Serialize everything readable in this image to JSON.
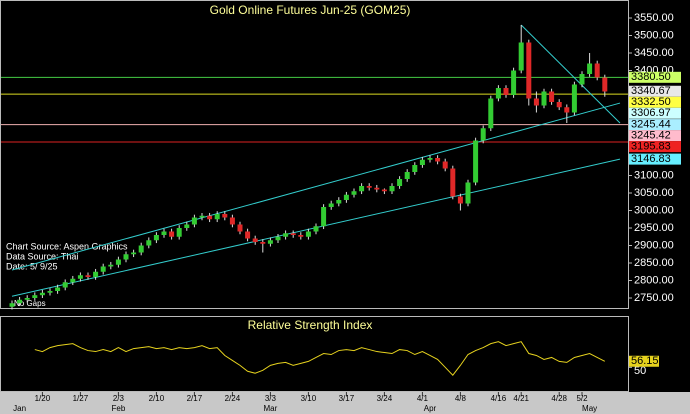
{
  "chart_data": [
    {
      "type": "candlestick",
      "title": "Gold Online Futures Jun-25 (GOM25)",
      "annotations": [
        "Chart Source: Aspen Graphics",
        "Data Source: Thai",
        "Date:    5/ 9/25",
        "No Gaps"
      ],
      "categories": [
        null,
        null,
        null,
        null,
        "1/20",
        null,
        null,
        null,
        null,
        "1/27",
        null,
        null,
        null,
        null,
        "2/3",
        null,
        null,
        null,
        null,
        "2/10",
        null,
        null,
        null,
        null,
        "2/17",
        null,
        null,
        null,
        null,
        "2/24",
        null,
        null,
        null,
        null,
        "3/3",
        null,
        null,
        null,
        null,
        "3/10",
        null,
        null,
        null,
        null,
        "3/17",
        null,
        null,
        null,
        null,
        "3/24",
        null,
        null,
        null,
        null,
        "4/1",
        null,
        null,
        null,
        null,
        "4/8",
        null,
        null,
        null,
        null,
        "4/16",
        null,
        null,
        "4/21",
        null,
        null,
        null,
        null,
        "4/28",
        null,
        null,
        "5/2",
        null,
        null,
        null
      ],
      "months": [
        null,
        "Jan",
        null,
        null,
        null,
        null,
        null,
        null,
        null,
        null,
        null,
        null,
        null,
        null,
        "Feb",
        null,
        null,
        null,
        null,
        null,
        null,
        null,
        null,
        null,
        null,
        null,
        null,
        null,
        null,
        null,
        null,
        null,
        null,
        null,
        "Mar",
        null,
        null,
        null,
        null,
        null,
        null,
        null,
        null,
        null,
        null,
        null,
        null,
        null,
        null,
        null,
        null,
        null,
        null,
        null,
        null,
        "Apr",
        null,
        null,
        null,
        null,
        null,
        null,
        null,
        null,
        null,
        null,
        null,
        null,
        null,
        null,
        null,
        null,
        null,
        null,
        null,
        null,
        "May",
        null,
        null
      ],
      "open": [
        2725,
        2735,
        2745,
        2750,
        2758,
        2765,
        2770,
        2780,
        2795,
        2805,
        2815,
        2810,
        2825,
        2840,
        2845,
        2860,
        2875,
        2880,
        2900,
        2915,
        2930,
        2940,
        2925,
        2950,
        2960,
        2980,
        2985,
        2975,
        2990,
        2980,
        2960,
        2940,
        2920,
        2910,
        2905,
        2915,
        2925,
        2935,
        2930,
        2925,
        2940,
        2955,
        3010,
        3020,
        3030,
        3045,
        3055,
        3070,
        3065,
        3060,
        3055,
        3070,
        3090,
        3110,
        3130,
        3145,
        3150,
        3140,
        3120,
        3040,
        3020,
        3080,
        3200,
        3235,
        3320,
        3350,
        3330,
        3400,
        3480,
        3320,
        3300,
        3340,
        3310,
        3295,
        3280,
        3360,
        3390,
        3420,
        3380
      ],
      "high": [
        2743,
        2753,
        2758,
        2766,
        2773,
        2778,
        2788,
        2803,
        2813,
        2823,
        2823,
        2833,
        2848,
        2853,
        2868,
        2883,
        2888,
        2908,
        2923,
        2938,
        2948,
        2948,
        2958,
        2968,
        2988,
        2993,
        2993,
        2998,
        2998,
        2988,
        2968,
        2948,
        2928,
        2918,
        2923,
        2933,
        2943,
        2943,
        2938,
        2948,
        2963,
        3018,
        3028,
        3038,
        3053,
        3063,
        3078,
        3078,
        3073,
        3063,
        3078,
        3098,
        3118,
        3138,
        3153,
        3158,
        3158,
        3148,
        3128,
        3048,
        3088,
        3208,
        3243,
        3328,
        3358,
        3358,
        3408,
        3530,
        3488,
        3340,
        3348,
        3348,
        3318,
        3303,
        3368,
        3398,
        3450,
        3428,
        3388
      ],
      "low": [
        2717,
        2727,
        2737,
        2742,
        2750,
        2757,
        2762,
        2772,
        2787,
        2797,
        2802,
        2802,
        2817,
        2832,
        2837,
        2852,
        2867,
        2872,
        2892,
        2907,
        2922,
        2917,
        2917,
        2942,
        2952,
        2972,
        2967,
        2967,
        2972,
        2952,
        2932,
        2912,
        2902,
        2880,
        2897,
        2907,
        2917,
        2922,
        2917,
        2917,
        2932,
        2947,
        3002,
        3012,
        3022,
        3037,
        3047,
        3057,
        3052,
        3047,
        3047,
        3062,
        3082,
        3102,
        3122,
        3137,
        3132,
        3112,
        3032,
        3000,
        3012,
        3072,
        3192,
        3227,
        3312,
        3322,
        3322,
        3392,
        3300,
        3280,
        3292,
        3302,
        3287,
        3250,
        3272,
        3352,
        3382,
        3372,
        3325
      ],
      "close": [
        2735,
        2745,
        2750,
        2758,
        2765,
        2770,
        2780,
        2795,
        2805,
        2815,
        2810,
        2825,
        2840,
        2845,
        2860,
        2875,
        2880,
        2900,
        2915,
        2930,
        2940,
        2925,
        2950,
        2960,
        2980,
        2985,
        2975,
        2990,
        2980,
        2960,
        2940,
        2920,
        2910,
        2905,
        2915,
        2925,
        2935,
        2930,
        2925,
        2940,
        2955,
        3010,
        3020,
        3030,
        3045,
        3055,
        3070,
        3065,
        3060,
        3055,
        3070,
        3090,
        3110,
        3130,
        3145,
        3150,
        3140,
        3120,
        3040,
        3020,
        3080,
        3200,
        3235,
        3320,
        3350,
        3330,
        3400,
        3480,
        3320,
        3300,
        3340,
        3310,
        3295,
        3280,
        3360,
        3390,
        3420,
        3380,
        3340
      ],
      "up_color": "#33cc33",
      "down_color": "#e02828",
      "ylim": [
        2720,
        3600
      ],
      "yticks": [
        {
          "value": 3550,
          "label": "3550.00"
        },
        {
          "value": 3500,
          "label": "3500.00"
        },
        {
          "value": 3450,
          "label": "3450.00"
        },
        {
          "value": 3400,
          "label": "3400.00"
        },
        {
          "value": 3100,
          "label": "3100.00"
        },
        {
          "value": 3050,
          "label": "3050.00"
        },
        {
          "value": 3000,
          "label": "3000.00"
        },
        {
          "value": 2950,
          "label": "2950.00"
        },
        {
          "value": 2900,
          "label": "2900.00"
        },
        {
          "value": 2850,
          "label": "2850.00"
        },
        {
          "value": 2800,
          "label": "2800.00"
        },
        {
          "value": 2750,
          "label": "2750.00"
        }
      ],
      "levels": [
        {
          "value": 3380.5,
          "label": "3380.50",
          "color": "#ccff66",
          "line": true,
          "line_color": "#44cc44"
        },
        {
          "value": 3340.67,
          "label": "3340.67",
          "color": "#e8e8e8",
          "line": false
        },
        {
          "value": 3332.5,
          "label": "3332.50",
          "color": "#ffff44",
          "line": true,
          "line_color": "#dddd22"
        },
        {
          "value": 3306.97,
          "label": "3306.97",
          "color": "#ccffff",
          "line": false
        },
        {
          "value": 3245.44,
          "label": "3245.44",
          "color": "#aaeeff",
          "line": true,
          "line_color": "#f0b0b0"
        },
        {
          "value": 3245.42,
          "label": "3245.42",
          "color": "#ffbbcc",
          "line": false
        },
        {
          "value": 3195.83,
          "label": "3195.83",
          "color": "#ee2222",
          "line": true,
          "line_color": "#dd2222"
        },
        {
          "value": 3146.83,
          "label": "3146.83",
          "color": "#66eeff",
          "line": false
        }
      ],
      "trendlines": [
        {
          "from": [
            0,
            2830
          ],
          "to": [
            80,
            3306.97
          ],
          "color": "#33cccc"
        },
        {
          "from": [
            0,
            2755
          ],
          "to": [
            80,
            3146.83
          ],
          "color": "#33cccc"
        },
        {
          "from": [
            67,
            3530
          ],
          "to": [
            80,
            3250
          ],
          "color": "#33cccc"
        }
      ]
    },
    {
      "type": "line",
      "title": "Relative Strength Index",
      "color": "#e6d21e",
      "values": [
        null,
        null,
        null,
        68,
        66,
        70,
        72,
        73,
        74,
        70,
        67,
        66,
        68,
        66,
        70,
        66,
        69,
        70,
        71,
        69,
        70,
        68,
        70,
        69,
        70,
        72,
        69,
        70,
        62,
        57,
        52,
        46,
        44,
        47,
        52,
        54,
        55,
        52,
        54,
        56,
        60,
        64,
        63,
        67,
        68,
        67,
        70,
        68,
        66,
        65,
        64,
        68,
        67,
        63,
        66,
        62,
        58,
        50,
        42,
        52,
        63,
        67,
        70,
        74,
        76,
        72,
        74,
        76,
        64,
        62,
        58,
        60,
        56,
        55,
        60,
        62,
        64,
        60,
        56.15
      ],
      "ylim": [
        25,
        100
      ],
      "yticks": [
        50
      ]
    }
  ]
}
